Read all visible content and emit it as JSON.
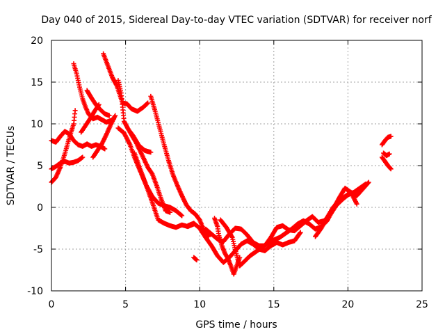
{
  "chart_data": {
    "type": "scatter",
    "title": "Day 040 of 2015, Sidereal Day-to-day VTEC variation (SDTVAR) for receiver norf",
    "xlabel": "GPS time / hours",
    "ylabel": "SDTVAR / TECUs",
    "xlim": [
      0,
      25
    ],
    "ylim": [
      -10,
      20
    ],
    "x_ticks": [
      0,
      5,
      10,
      15,
      20,
      25
    ],
    "y_ticks": [
      -10,
      -5,
      0,
      5,
      10,
      15,
      20
    ],
    "grid": true,
    "legend": "none",
    "marker": "+",
    "series_color": "#ff0000",
    "series": [
      {
        "name": "arc-1",
        "points": [
          [
            0.0,
            3.0
          ],
          [
            0.3,
            3.6
          ],
          [
            0.6,
            4.8
          ],
          [
            0.9,
            6.4
          ],
          [
            1.2,
            8.3
          ],
          [
            1.5,
            10.0
          ],
          [
            1.6,
            11.6
          ]
        ]
      },
      {
        "name": "arc-2",
        "points": [
          [
            0.0,
            8.0
          ],
          [
            0.3,
            7.8
          ],
          [
            0.6,
            8.5
          ],
          [
            0.9,
            9.1
          ],
          [
            1.2,
            8.8
          ],
          [
            1.5,
            8.0
          ],
          [
            1.8,
            7.5
          ],
          [
            2.1,
            7.3
          ],
          [
            2.4,
            7.6
          ],
          [
            2.7,
            7.3
          ],
          [
            3.0,
            7.5
          ],
          [
            3.3,
            7.3
          ],
          [
            3.6,
            7.0
          ]
        ]
      },
      {
        "name": "arc-3",
        "points": [
          [
            0.0,
            4.6
          ],
          [
            0.3,
            4.9
          ],
          [
            0.6,
            5.3
          ],
          [
            0.9,
            5.5
          ],
          [
            1.2,
            5.3
          ],
          [
            1.5,
            5.4
          ],
          [
            1.8,
            5.6
          ],
          [
            2.1,
            6.0
          ]
        ]
      },
      {
        "name": "arc-4",
        "points": [
          [
            1.5,
            17.2
          ],
          [
            1.7,
            16.0
          ],
          [
            1.9,
            14.4
          ],
          [
            2.1,
            13.0
          ],
          [
            2.3,
            12.0
          ],
          [
            2.5,
            11.2
          ],
          [
            2.8,
            10.6
          ],
          [
            3.1,
            10.8
          ],
          [
            3.4,
            10.5
          ],
          [
            3.7,
            10.2
          ],
          [
            4.0,
            10.4
          ],
          [
            4.2,
            10.6
          ]
        ]
      },
      {
        "name": "arc-5",
        "points": [
          [
            2.4,
            14.0
          ],
          [
            2.7,
            13.1
          ],
          [
            3.0,
            12.3
          ],
          [
            3.3,
            11.7
          ],
          [
            3.6,
            11.2
          ],
          [
            3.9,
            11.0
          ]
        ]
      },
      {
        "name": "arc-6",
        "points": [
          [
            2.0,
            9.0
          ],
          [
            2.3,
            9.8
          ],
          [
            2.6,
            10.6
          ],
          [
            2.9,
            11.5
          ],
          [
            3.2,
            12.3
          ]
        ]
      },
      {
        "name": "arc-7",
        "points": [
          [
            2.8,
            6.0
          ],
          [
            3.1,
            6.8
          ],
          [
            3.4,
            7.6
          ],
          [
            3.7,
            8.7
          ],
          [
            4.0,
            9.9
          ],
          [
            4.3,
            11.0
          ]
        ]
      },
      {
        "name": "arc-8",
        "points": [
          [
            3.5,
            18.4
          ],
          [
            3.8,
            17.0
          ],
          [
            4.1,
            15.6
          ],
          [
            4.4,
            14.6
          ],
          [
            4.8,
            12.5
          ],
          [
            5.1,
            12.4
          ],
          [
            5.4,
            11.8
          ],
          [
            5.8,
            11.5
          ],
          [
            6.2,
            12.0
          ],
          [
            6.5,
            12.5
          ]
        ]
      },
      {
        "name": "arc-9",
        "points": [
          [
            4.5,
            15.2
          ],
          [
            4.7,
            13.7
          ],
          [
            4.8,
            12.0
          ],
          [
            4.9,
            10.3
          ],
          [
            5.2,
            9.3
          ],
          [
            5.5,
            8.6
          ],
          [
            5.9,
            7.4
          ],
          [
            6.3,
            6.8
          ],
          [
            6.7,
            6.6
          ]
        ]
      },
      {
        "name": "arc-10",
        "points": [
          [
            4.5,
            9.5
          ],
          [
            4.9,
            8.9
          ],
          [
            5.3,
            7.5
          ],
          [
            5.6,
            6.0
          ],
          [
            6.0,
            4.3
          ],
          [
            6.4,
            2.6
          ],
          [
            6.8,
            1.3
          ],
          [
            7.2,
            0.5
          ],
          [
            7.6,
            0.2
          ],
          [
            8.0,
            0.0
          ],
          [
            8.4,
            -0.4
          ],
          [
            8.8,
            -1.0
          ]
        ]
      },
      {
        "name": "arc-11",
        "points": [
          [
            5.3,
            9.0
          ],
          [
            5.7,
            7.8
          ],
          [
            6.1,
            6.3
          ],
          [
            6.5,
            4.8
          ],
          [
            6.8,
            4.0
          ],
          [
            7.1,
            2.6
          ],
          [
            7.4,
            1.0
          ],
          [
            7.7,
            -0.4
          ],
          [
            8.0,
            -0.6
          ]
        ]
      },
      {
        "name": "arc-12",
        "points": [
          [
            5.6,
            6.5
          ],
          [
            6.0,
            4.5
          ],
          [
            6.4,
            2.6
          ],
          [
            6.8,
            0.6
          ],
          [
            7.2,
            -1.5
          ],
          [
            7.6,
            -1.9
          ],
          [
            8.0,
            -2.2
          ],
          [
            8.4,
            -2.4
          ],
          [
            8.8,
            -2.1
          ],
          [
            9.2,
            -2.3
          ],
          [
            9.6,
            -2.0
          ]
        ]
      },
      {
        "name": "arc-13",
        "points": [
          [
            6.7,
            13.3
          ],
          [
            7.0,
            11.5
          ],
          [
            7.3,
            9.5
          ],
          [
            7.6,
            7.5
          ],
          [
            7.9,
            5.6
          ],
          [
            8.2,
            3.9
          ],
          [
            8.5,
            2.6
          ],
          [
            8.8,
            1.4
          ],
          [
            9.1,
            0.3
          ],
          [
            9.4,
            -0.4
          ],
          [
            9.7,
            -0.8
          ],
          [
            10.0,
            -1.5
          ],
          [
            10.3,
            -2.8
          ],
          [
            10.6,
            -3.5
          ]
        ]
      },
      {
        "name": "arc-14",
        "points": [
          [
            9.2,
            -2.2
          ],
          [
            9.6,
            -1.9
          ],
          [
            10.0,
            -2.5
          ],
          [
            10.4,
            -3.6
          ],
          [
            10.8,
            -4.6
          ],
          [
            11.2,
            -5.8
          ],
          [
            11.6,
            -6.6
          ],
          [
            12.0,
            -6.0
          ],
          [
            12.4,
            -5.2
          ],
          [
            12.8,
            -4.4
          ],
          [
            13.2,
            -4.0
          ],
          [
            13.6,
            -4.4
          ],
          [
            14.0,
            -5.0
          ],
          [
            14.4,
            -5.2
          ],
          [
            14.8,
            -4.6
          ],
          [
            15.2,
            -4.2
          ],
          [
            15.6,
            -4.5
          ],
          [
            16.0,
            -4.2
          ],
          [
            16.4,
            -4.0
          ],
          [
            16.8,
            -3.0
          ]
        ]
      },
      {
        "name": "arc-15",
        "points": [
          [
            10.4,
            -2.6
          ],
          [
            10.8,
            -3.2
          ],
          [
            11.2,
            -3.8
          ],
          [
            11.6,
            -4.1
          ],
          [
            12.0,
            -3.2
          ],
          [
            12.4,
            -2.5
          ],
          [
            12.8,
            -2.6
          ],
          [
            13.2,
            -3.3
          ],
          [
            13.6,
            -4.2
          ],
          [
            14.0,
            -4.6
          ],
          [
            14.4,
            -4.6
          ],
          [
            14.8,
            -3.6
          ],
          [
            15.2,
            -2.4
          ],
          [
            15.6,
            -2.2
          ],
          [
            16.0,
            -2.7
          ],
          [
            16.4,
            -2.8
          ],
          [
            16.8,
            -2.2
          ],
          [
            17.2,
            -1.6
          ],
          [
            17.6,
            -1.1
          ],
          [
            18.0,
            -1.8
          ],
          [
            18.4,
            -1.6
          ],
          [
            18.8,
            -0.9
          ],
          [
            19.2,
            0.2
          ],
          [
            19.6,
            0.9
          ],
          [
            20.0,
            1.5
          ],
          [
            20.4,
            1.8
          ],
          [
            20.8,
            2.3
          ],
          [
            21.2,
            2.8
          ]
        ]
      },
      {
        "name": "arc-16",
        "points": [
          [
            11.4,
            -1.5
          ],
          [
            11.8,
            -2.4
          ],
          [
            12.2,
            -3.6
          ],
          [
            12.5,
            -5.8
          ],
          [
            12.7,
            -7.0
          ],
          [
            13.0,
            -6.5
          ],
          [
            13.4,
            -5.8
          ],
          [
            13.8,
            -5.3
          ],
          [
            14.2,
            -4.8
          ],
          [
            14.6,
            -4.3
          ],
          [
            15.0,
            -3.9
          ],
          [
            15.4,
            -3.6
          ],
          [
            15.8,
            -3.1
          ],
          [
            16.2,
            -2.6
          ],
          [
            16.6,
            -2.0
          ],
          [
            17.0,
            -1.6
          ],
          [
            17.4,
            -2.0
          ],
          [
            17.8,
            -2.6
          ],
          [
            18.2,
            -2.3
          ],
          [
            18.6,
            -1.6
          ],
          [
            19.0,
            -0.2
          ],
          [
            19.4,
            1.1
          ],
          [
            19.8,
            2.3
          ],
          [
            20.2,
            1.8
          ],
          [
            20.6,
            0.4
          ]
        ]
      },
      {
        "name": "arc-17",
        "points": [
          [
            11.0,
            -1.3
          ],
          [
            11.2,
            -2.3
          ],
          [
            11.3,
            -3.4
          ],
          [
            11.5,
            -4.6
          ],
          [
            11.7,
            -5.5
          ],
          [
            11.9,
            -6.1
          ],
          [
            12.1,
            -7.0
          ],
          [
            12.3,
            -8.0
          ],
          [
            12.5,
            -7.0
          ],
          [
            12.7,
            -6.0
          ]
        ]
      },
      {
        "name": "arc-18",
        "points": [
          [
            17.8,
            -3.5
          ],
          [
            18.2,
            -2.5
          ],
          [
            18.6,
            -1.2
          ],
          [
            19.0,
            0.0
          ],
          [
            19.4,
            0.8
          ],
          [
            19.8,
            1.3
          ],
          [
            20.2,
            1.8
          ],
          [
            20.6,
            1.4
          ],
          [
            21.0,
            2.2
          ],
          [
            21.4,
            3.0
          ]
        ]
      },
      {
        "name": "arc-19",
        "points": [
          [
            22.3,
            7.5
          ],
          [
            22.5,
            8.0
          ],
          [
            22.7,
            8.4
          ],
          [
            22.9,
            8.5
          ]
        ]
      },
      {
        "name": "arc-20",
        "points": [
          [
            22.3,
            6.0
          ],
          [
            22.5,
            5.5
          ],
          [
            22.7,
            5.0
          ],
          [
            22.9,
            4.6
          ]
        ]
      },
      {
        "name": "arc-21",
        "points": [
          [
            22.4,
            6.5
          ],
          [
            22.6,
            6.2
          ],
          [
            22.8,
            6.4
          ]
        ]
      },
      {
        "name": "outlier",
        "points": [
          [
            9.6,
            -6.0
          ],
          [
            9.8,
            -6.3
          ]
        ]
      }
    ]
  }
}
